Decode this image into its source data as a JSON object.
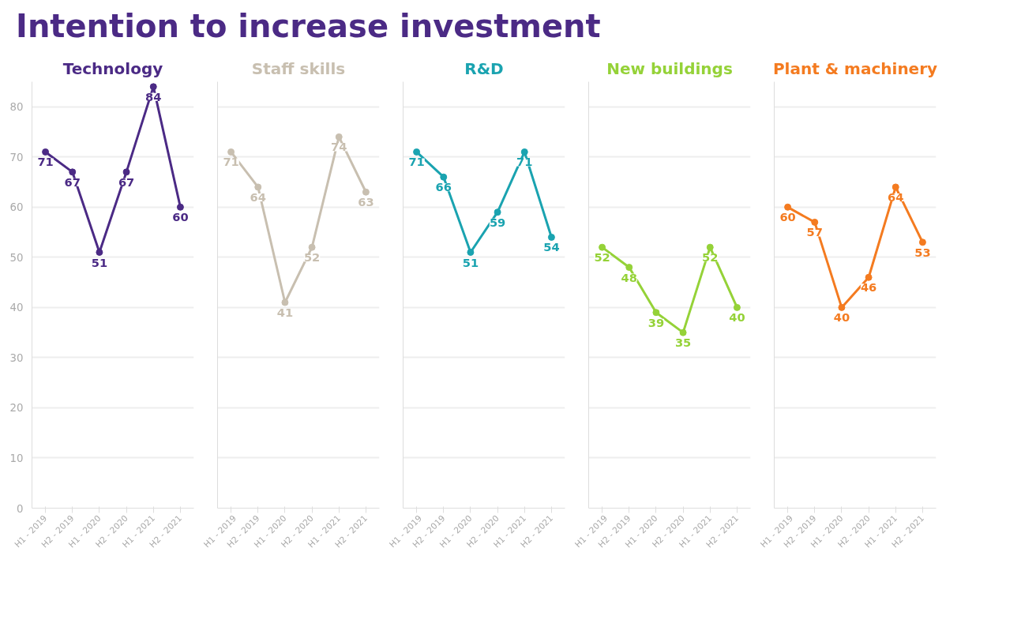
{
  "chart_data": [
    {
      "type": "line",
      "title": "Intention to increase investment",
      "categories": [
        "H1 - 2019",
        "H2 - 2019",
        "H1 - 2020",
        "H2 - 2020",
        "H1 - 2021",
        "H2 - 2021"
      ],
      "ylim": [
        0,
        85
      ],
      "yticks": [
        0,
        10,
        20,
        30,
        40,
        50,
        60,
        70,
        80
      ],
      "grid": "y",
      "marker": "circle",
      "data_labels": true,
      "series": [
        {
          "name": "Technology",
          "color": "#4b2a85",
          "values": [
            71,
            67,
            51,
            67,
            84,
            60
          ]
        }
      ]
    },
    {
      "type": "line",
      "categories": [
        "H1 - 2019",
        "H2 - 2019",
        "H1 - 2020",
        "H2 - 2020",
        "H1 - 2021",
        "H2 - 2021"
      ],
      "ylim": [
        0,
        85
      ],
      "yticks": [
        0,
        10,
        20,
        30,
        40,
        50,
        60,
        70,
        80
      ],
      "grid": "y",
      "marker": "circle",
      "data_labels": true,
      "tick_labels": "x",
      "series": [
        {
          "name": "Staff skills",
          "color": "#c8bfb0",
          "values": [
            71,
            64,
            41,
            52,
            74,
            63
          ]
        }
      ]
    },
    {
      "type": "line",
      "categories": [
        "H1 - 2019",
        "H2 - 2019",
        "H1 - 2020",
        "H2 - 2020",
        "H1 - 2021",
        "H2 - 2021"
      ],
      "ylim": [
        0,
        85
      ],
      "yticks": [
        0,
        10,
        20,
        30,
        40,
        50,
        60,
        70,
        80
      ],
      "grid": "y",
      "marker": "circle",
      "data_labels": true,
      "tick_labels": "x",
      "series": [
        {
          "name": "R&D",
          "color": "#1aa3b0",
          "values": [
            71,
            66,
            51,
            59,
            71,
            54
          ]
        }
      ]
    },
    {
      "type": "line",
      "categories": [
        "H1 - 2019",
        "H2 - 2019",
        "H1 - 2020",
        "H2 - 2020",
        "H1 - 2021",
        "H2 - 2021"
      ],
      "ylim": [
        0,
        85
      ],
      "yticks": [
        0,
        10,
        20,
        30,
        40,
        50,
        60,
        70,
        80
      ],
      "grid": "y",
      "marker": "circle",
      "data_labels": true,
      "tick_labels": "x",
      "series": [
        {
          "name": "New buildings",
          "color": "#95d238",
          "values": [
            52,
            48,
            39,
            35,
            52,
            40
          ]
        }
      ]
    },
    {
      "type": "line",
      "categories": [
        "H1 - 2019",
        "H2 - 2019",
        "H1 - 2020",
        "H2 - 2020",
        "H1 - 2021",
        "H2 - 2021"
      ],
      "ylim": [
        0,
        85
      ],
      "yticks": [
        0,
        10,
        20,
        30,
        40,
        50,
        60,
        70,
        80
      ],
      "grid": "y",
      "marker": "circle",
      "data_labels": true,
      "tick_labels": "x",
      "series": [
        {
          "name": "Plant & machinery",
          "color": "#f47b20",
          "values": [
            60,
            57,
            40,
            46,
            64,
            53
          ]
        }
      ]
    }
  ]
}
